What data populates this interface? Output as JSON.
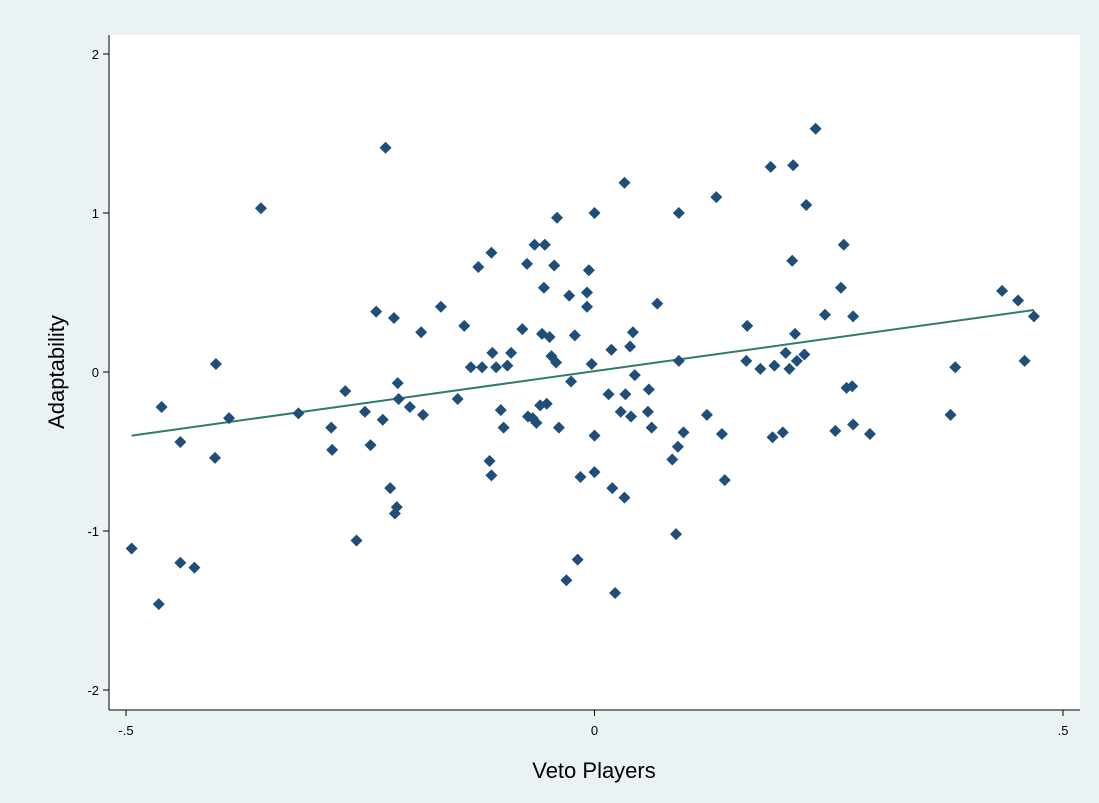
{
  "chart_data": {
    "type": "scatter",
    "xlabel": "Veto Players",
    "ylabel": "Adaptability",
    "xlim": [
      -0.5,
      0.5
    ],
    "ylim": [
      -2,
      2
    ],
    "x_ticks": [
      -0.5,
      0,
      0.5
    ],
    "x_tick_labels": [
      "-.5",
      "0",
      ".5"
    ],
    "y_ticks": [
      -2,
      -1,
      0,
      1,
      2
    ],
    "y_tick_labels": [
      "-2",
      "-1",
      "0",
      "1",
      "2"
    ],
    "grid": false,
    "colors": {
      "marker": "#1f4e79",
      "fit_line": "#2e7d6b",
      "plot_bg": "#ffffff",
      "page_bg": "#eaf2f3"
    },
    "series": [
      {
        "marker": "diamond",
        "points": [
          [
            -0.494,
            -1.11
          ],
          [
            -0.465,
            -1.46
          ],
          [
            -0.462,
            -0.22
          ],
          [
            -0.442,
            -0.44
          ],
          [
            -0.442,
            -1.2
          ],
          [
            -0.427,
            -1.23
          ],
          [
            -0.404,
            0.05
          ],
          [
            -0.405,
            -0.54
          ],
          [
            -0.39,
            -0.29
          ],
          [
            -0.356,
            1.03
          ],
          [
            -0.316,
            -0.26
          ],
          [
            -0.281,
            -0.35
          ],
          [
            -0.28,
            -0.49
          ],
          [
            -0.266,
            -0.12
          ],
          [
            -0.254,
            -1.06
          ],
          [
            -0.245,
            -0.25
          ],
          [
            -0.239,
            -0.46
          ],
          [
            -0.233,
            0.38
          ],
          [
            -0.226,
            -0.3
          ],
          [
            -0.223,
            1.41
          ],
          [
            -0.218,
            -0.73
          ],
          [
            -0.214,
            0.34
          ],
          [
            -0.213,
            -0.89
          ],
          [
            -0.211,
            -0.85
          ],
          [
            -0.21,
            -0.07
          ],
          [
            -0.209,
            -0.17
          ],
          [
            -0.197,
            -0.22
          ],
          [
            -0.185,
            0.25
          ],
          [
            -0.183,
            -0.27
          ],
          [
            -0.164,
            0.41
          ],
          [
            -0.146,
            -0.17
          ],
          [
            -0.139,
            0.29
          ],
          [
            -0.132,
            0.03
          ],
          [
            -0.124,
            0.66
          ],
          [
            -0.12,
            0.03
          ],
          [
            -0.112,
            -0.56
          ],
          [
            -0.11,
            -0.65
          ],
          [
            -0.11,
            0.75
          ],
          [
            -0.109,
            0.12
          ],
          [
            -0.105,
            0.03
          ],
          [
            -0.1,
            -0.24
          ],
          [
            -0.097,
            -0.35
          ],
          [
            -0.093,
            0.04
          ],
          [
            -0.089,
            0.12
          ],
          [
            -0.077,
            0.27
          ],
          [
            -0.072,
            0.68
          ],
          [
            -0.071,
            -0.28
          ],
          [
            -0.066,
            -0.29
          ],
          [
            -0.064,
            0.8
          ],
          [
            -0.062,
            -0.32
          ],
          [
            -0.058,
            -0.21
          ],
          [
            -0.056,
            0.24
          ],
          [
            -0.053,
            0.8
          ],
          [
            -0.054,
            0.53
          ],
          [
            -0.051,
            -0.2
          ],
          [
            -0.048,
            0.22
          ],
          [
            -0.046,
            0.1
          ],
          [
            -0.043,
            0.67
          ],
          [
            -0.041,
            0.06
          ],
          [
            -0.04,
            0.97
          ],
          [
            -0.038,
            -0.35
          ],
          [
            -0.03,
            -1.31
          ],
          [
            -0.027,
            0.48
          ],
          [
            -0.025,
            -0.06
          ],
          [
            -0.021,
            0.23
          ],
          [
            -0.018,
            -1.18
          ],
          [
            -0.015,
            -0.66
          ],
          [
            -0.008,
            0.5
          ],
          [
            -0.008,
            0.41
          ],
          [
            -0.006,
            0.64
          ],
          [
            -0.003,
            0.05
          ],
          [
            0.0,
            1.0
          ],
          [
            0.0,
            -0.63
          ],
          [
            0.0,
            -0.4
          ],
          [
            0.015,
            -0.14
          ],
          [
            0.018,
            0.14
          ],
          [
            0.019,
            -0.73
          ],
          [
            0.022,
            -1.39
          ],
          [
            0.028,
            -0.25
          ],
          [
            0.032,
            1.19
          ],
          [
            0.032,
            -0.79
          ],
          [
            0.033,
            -0.14
          ],
          [
            0.038,
            0.16
          ],
          [
            0.039,
            -0.28
          ],
          [
            0.041,
            0.25
          ],
          [
            0.043,
            -0.02
          ],
          [
            0.057,
            -0.25
          ],
          [
            0.058,
            -0.11
          ],
          [
            0.061,
            -0.35
          ],
          [
            0.067,
            0.43
          ],
          [
            0.083,
            -0.55
          ],
          [
            0.087,
            -1.02
          ],
          [
            0.089,
            -0.47
          ],
          [
            0.09,
            1.0
          ],
          [
            0.09,
            0.07
          ],
          [
            0.095,
            -0.38
          ],
          [
            0.12,
            -0.27
          ],
          [
            0.13,
            1.1
          ],
          [
            0.136,
            -0.39
          ],
          [
            0.139,
            -0.68
          ],
          [
            0.162,
            0.07
          ],
          [
            0.163,
            0.29
          ],
          [
            0.177,
            0.02
          ],
          [
            0.188,
            1.29
          ],
          [
            0.19,
            -0.41
          ],
          [
            0.192,
            0.04
          ],
          [
            0.201,
            -0.38
          ],
          [
            0.204,
            0.12
          ],
          [
            0.208,
            0.02
          ],
          [
            0.211,
            0.7
          ],
          [
            0.212,
            1.3
          ],
          [
            0.214,
            0.24
          ],
          [
            0.216,
            0.07
          ],
          [
            0.224,
            0.11
          ],
          [
            0.226,
            1.05
          ],
          [
            0.236,
            1.53
          ],
          [
            0.246,
            0.36
          ],
          [
            0.257,
            -0.37
          ],
          [
            0.263,
            0.53
          ],
          [
            0.266,
            0.8
          ],
          [
            0.269,
            -0.1
          ],
          [
            0.275,
            -0.09
          ],
          [
            0.276,
            -0.33
          ],
          [
            0.276,
            0.35
          ],
          [
            0.294,
            -0.39
          ],
          [
            0.38,
            -0.27
          ],
          [
            0.385,
            0.03
          ],
          [
            0.435,
            0.51
          ],
          [
            0.452,
            0.45
          ],
          [
            0.459,
            0.07
          ],
          [
            0.469,
            0.35
          ]
        ]
      }
    ],
    "fit_line": {
      "x": [
        -0.494,
        0.469
      ],
      "y": [
        -0.4,
        0.39
      ]
    }
  }
}
